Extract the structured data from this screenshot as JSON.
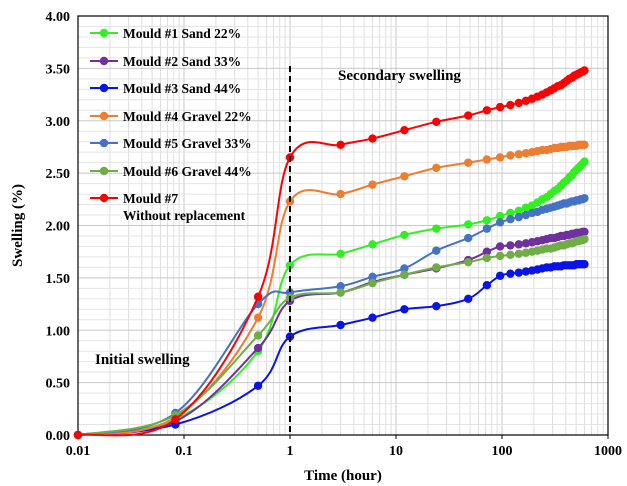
{
  "chart_data": {
    "type": "line",
    "xscale": "log",
    "xlim": [
      0.01,
      1000
    ],
    "ylim": [
      0,
      4
    ],
    "xlabel": "Time (hour)",
    "ylabel": "Swelling (%)",
    "grid": true,
    "x_ticks": [
      "0.01",
      "0.1",
      "1",
      "10",
      "100",
      "1000"
    ],
    "y_ticks": [
      "0.00",
      "0.50",
      "1.00",
      "1.50",
      "2.00",
      "2.50",
      "3.00",
      "3.50",
      "4.00"
    ],
    "annotations": {
      "initial": "Initial swelling",
      "secondary": "Secondary swelling"
    },
    "divider_x": 1,
    "legend_position": "top-left",
    "series": [
      {
        "name": "Mould #1 Sand 22%",
        "color": "#33ee22",
        "points": [
          [
            0.01,
            0
          ],
          [
            0.083,
            0.15
          ],
          [
            0.5,
            0.8
          ],
          [
            1,
            1.62
          ],
          [
            3,
            1.73
          ],
          [
            6,
            1.82
          ],
          [
            12,
            1.91
          ],
          [
            24,
            1.97
          ],
          [
            48,
            2.01
          ],
          [
            72,
            2.05
          ],
          [
            96,
            2.09
          ],
          [
            120,
            2.12
          ],
          [
            144,
            2.14
          ],
          [
            168,
            2.17
          ],
          [
            192,
            2.19
          ],
          [
            216,
            2.22
          ],
          [
            240,
            2.25
          ],
          [
            264,
            2.27
          ],
          [
            288,
            2.3
          ],
          [
            312,
            2.33
          ],
          [
            336,
            2.35
          ],
          [
            360,
            2.38
          ],
          [
            384,
            2.41
          ],
          [
            408,
            2.43
          ],
          [
            432,
            2.46
          ],
          [
            456,
            2.48
          ],
          [
            480,
            2.51
          ],
          [
            504,
            2.53
          ],
          [
            528,
            2.55
          ],
          [
            552,
            2.57
          ],
          [
            576,
            2.59
          ],
          [
            600,
            2.61
          ]
        ]
      },
      {
        "name": "Mould #2 Sand 33%",
        "color": "#7030a0",
        "points": [
          [
            0.01,
            0
          ],
          [
            0.083,
            0.13
          ],
          [
            0.5,
            0.83
          ],
          [
            1,
            1.28
          ],
          [
            3,
            1.36
          ],
          [
            6,
            1.46
          ],
          [
            12,
            1.53
          ],
          [
            24,
            1.59
          ],
          [
            48,
            1.67
          ],
          [
            72,
            1.75
          ],
          [
            96,
            1.8
          ],
          [
            120,
            1.81
          ],
          [
            144,
            1.82
          ],
          [
            168,
            1.83
          ],
          [
            192,
            1.84
          ],
          [
            216,
            1.85
          ],
          [
            240,
            1.86
          ],
          [
            264,
            1.87
          ],
          [
            288,
            1.88
          ],
          [
            312,
            1.88
          ],
          [
            336,
            1.89
          ],
          [
            360,
            1.9
          ],
          [
            384,
            1.9
          ],
          [
            408,
            1.91
          ],
          [
            432,
            1.91
          ],
          [
            456,
            1.92
          ],
          [
            480,
            1.92
          ],
          [
            504,
            1.93
          ],
          [
            528,
            1.93
          ],
          [
            552,
            1.93
          ],
          [
            576,
            1.94
          ],
          [
            600,
            1.94
          ]
        ]
      },
      {
        "name": "Mould #3 Sand 44%",
        "color": "#0a14e6",
        "points": [
          [
            0.01,
            0
          ],
          [
            0.083,
            0.1
          ],
          [
            0.5,
            0.47
          ],
          [
            1,
            0.94
          ],
          [
            3,
            1.05
          ],
          [
            6,
            1.12
          ],
          [
            12,
            1.2
          ],
          [
            24,
            1.23
          ],
          [
            48,
            1.3
          ],
          [
            72,
            1.43
          ],
          [
            96,
            1.52
          ],
          [
            120,
            1.54
          ],
          [
            144,
            1.55
          ],
          [
            168,
            1.56
          ],
          [
            192,
            1.57
          ],
          [
            216,
            1.58
          ],
          [
            240,
            1.59
          ],
          [
            264,
            1.6
          ],
          [
            288,
            1.6
          ],
          [
            312,
            1.61
          ],
          [
            336,
            1.61
          ],
          [
            360,
            1.61
          ],
          [
            384,
            1.62
          ],
          [
            408,
            1.62
          ],
          [
            432,
            1.62
          ],
          [
            456,
            1.62
          ],
          [
            480,
            1.62
          ],
          [
            504,
            1.63
          ],
          [
            528,
            1.63
          ],
          [
            552,
            1.63
          ],
          [
            576,
            1.63
          ],
          [
            600,
            1.63
          ]
        ]
      },
      {
        "name": "Mould #4 Gravel 22%",
        "color": "#ed7d31",
        "points": [
          [
            0.01,
            0
          ],
          [
            0.083,
            0.17
          ],
          [
            0.5,
            1.12
          ],
          [
            1,
            2.23
          ],
          [
            3,
            2.3
          ],
          [
            6,
            2.39
          ],
          [
            12,
            2.47
          ],
          [
            24,
            2.55
          ],
          [
            48,
            2.6
          ],
          [
            72,
            2.63
          ],
          [
            96,
            2.65
          ],
          [
            120,
            2.67
          ],
          [
            144,
            2.68
          ],
          [
            168,
            2.69
          ],
          [
            192,
            2.7
          ],
          [
            216,
            2.71
          ],
          [
            240,
            2.72
          ],
          [
            264,
            2.72
          ],
          [
            288,
            2.73
          ],
          [
            312,
            2.74
          ],
          [
            336,
            2.74
          ],
          [
            360,
            2.75
          ],
          [
            384,
            2.75
          ],
          [
            408,
            2.75
          ],
          [
            432,
            2.76
          ],
          [
            456,
            2.76
          ],
          [
            480,
            2.76
          ],
          [
            504,
            2.76
          ],
          [
            528,
            2.77
          ],
          [
            552,
            2.77
          ],
          [
            576,
            2.77
          ],
          [
            600,
            2.77
          ]
        ]
      },
      {
        "name": "Mould #5 Gravel 33%",
        "color": "#4472c4",
        "points": [
          [
            0.01,
            0
          ],
          [
            0.083,
            0.21
          ],
          [
            0.5,
            1.25
          ],
          [
            1,
            1.36
          ],
          [
            3,
            1.42
          ],
          [
            6,
            1.51
          ],
          [
            12,
            1.59
          ],
          [
            24,
            1.76
          ],
          [
            48,
            1.88
          ],
          [
            72,
            1.97
          ],
          [
            96,
            2.03
          ],
          [
            120,
            2.06
          ],
          [
            144,
            2.08
          ],
          [
            168,
            2.1
          ],
          [
            192,
            2.12
          ],
          [
            216,
            2.13
          ],
          [
            240,
            2.15
          ],
          [
            264,
            2.16
          ],
          [
            288,
            2.17
          ],
          [
            312,
            2.18
          ],
          [
            336,
            2.19
          ],
          [
            360,
            2.2
          ],
          [
            384,
            2.21
          ],
          [
            408,
            2.21
          ],
          [
            432,
            2.22
          ],
          [
            456,
            2.23
          ],
          [
            480,
            2.23
          ],
          [
            504,
            2.24
          ],
          [
            528,
            2.24
          ],
          [
            552,
            2.25
          ],
          [
            576,
            2.25
          ],
          [
            600,
            2.26
          ]
        ]
      },
      {
        "name": "Mould #6 Gravel 44%",
        "color": "#70ad47",
        "points": [
          [
            0.01,
            0
          ],
          [
            0.083,
            0.19
          ],
          [
            0.5,
            0.95
          ],
          [
            1,
            1.31
          ],
          [
            3,
            1.36
          ],
          [
            6,
            1.45
          ],
          [
            12,
            1.53
          ],
          [
            24,
            1.6
          ],
          [
            48,
            1.65
          ],
          [
            72,
            1.69
          ],
          [
            96,
            1.71
          ],
          [
            120,
            1.72
          ],
          [
            144,
            1.73
          ],
          [
            168,
            1.74
          ],
          [
            192,
            1.75
          ],
          [
            216,
            1.76
          ],
          [
            240,
            1.77
          ],
          [
            264,
            1.78
          ],
          [
            288,
            1.78
          ],
          [
            312,
            1.79
          ],
          [
            336,
            1.8
          ],
          [
            360,
            1.81
          ],
          [
            384,
            1.81
          ],
          [
            408,
            1.82
          ],
          [
            432,
            1.83
          ],
          [
            456,
            1.83
          ],
          [
            480,
            1.84
          ],
          [
            504,
            1.85
          ],
          [
            528,
            1.85
          ],
          [
            552,
            1.86
          ],
          [
            576,
            1.86
          ],
          [
            600,
            1.87
          ]
        ]
      },
      {
        "name": "Mould #7 Without replacement",
        "color": "#ff0000",
        "points": [
          [
            0.01,
            0
          ],
          [
            0.083,
            0.15
          ],
          [
            0.5,
            1.32
          ],
          [
            1,
            2.65
          ],
          [
            3,
            2.77
          ],
          [
            6,
            2.83
          ],
          [
            12,
            2.91
          ],
          [
            24,
            2.99
          ],
          [
            48,
            3.05
          ],
          [
            72,
            3.1
          ],
          [
            96,
            3.13
          ],
          [
            120,
            3.15
          ],
          [
            144,
            3.17
          ],
          [
            168,
            3.19
          ],
          [
            192,
            3.21
          ],
          [
            216,
            3.23
          ],
          [
            240,
            3.25
          ],
          [
            264,
            3.27
          ],
          [
            288,
            3.29
          ],
          [
            312,
            3.31
          ],
          [
            336,
            3.33
          ],
          [
            360,
            3.34
          ],
          [
            384,
            3.36
          ],
          [
            408,
            3.38
          ],
          [
            432,
            3.4
          ],
          [
            456,
            3.41
          ],
          [
            480,
            3.43
          ],
          [
            504,
            3.44
          ],
          [
            528,
            3.45
          ],
          [
            552,
            3.46
          ],
          [
            576,
            3.47
          ],
          [
            600,
            3.48
          ]
        ]
      }
    ]
  }
}
